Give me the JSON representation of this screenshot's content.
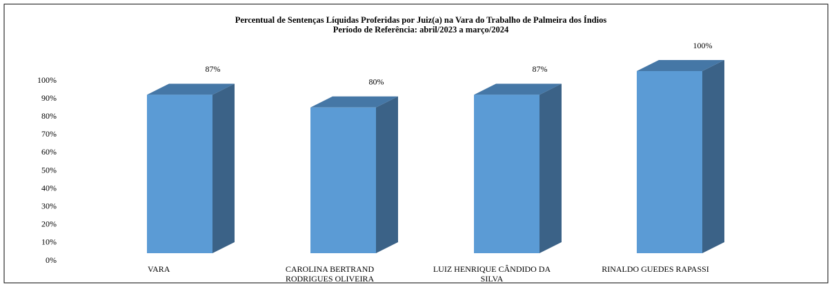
{
  "chart_data": {
    "type": "bar3d",
    "title": "Percentual de Sentenças Líquidas Proferidas por Juiz(a) na Vara do Trabalho de Palmeira dos Índios",
    "subtitle": "Período de Referência: abril/2023 a março/2024",
    "categories": [
      "VARA",
      "CAROLINA BERTRAND RODRIGUES OLIVEIRA",
      "LUIZ HENRIQUE CÂNDIDO DA SILVA",
      "RINALDO GUEDES RAPASSI"
    ],
    "values": [
      87,
      80,
      87,
      100
    ],
    "value_labels": [
      "87%",
      "80%",
      "87%",
      "100%"
    ],
    "color": "#5b9bd5",
    "ylim": [
      0,
      100
    ],
    "yticks": [
      {
        "value": 0,
        "label": "0%"
      },
      {
        "value": 10,
        "label": "10%"
      },
      {
        "value": 20,
        "label": "20%"
      },
      {
        "value": 30,
        "label": "30%"
      },
      {
        "value": 40,
        "label": "40%"
      },
      {
        "value": 50,
        "label": "50%"
      },
      {
        "value": 60,
        "label": "60%"
      },
      {
        "value": 70,
        "label": "70%"
      },
      {
        "value": 80,
        "label": "80%"
      },
      {
        "value": 90,
        "label": "90%"
      },
      {
        "value": 100,
        "label": "100%"
      }
    ],
    "grid": false
  }
}
